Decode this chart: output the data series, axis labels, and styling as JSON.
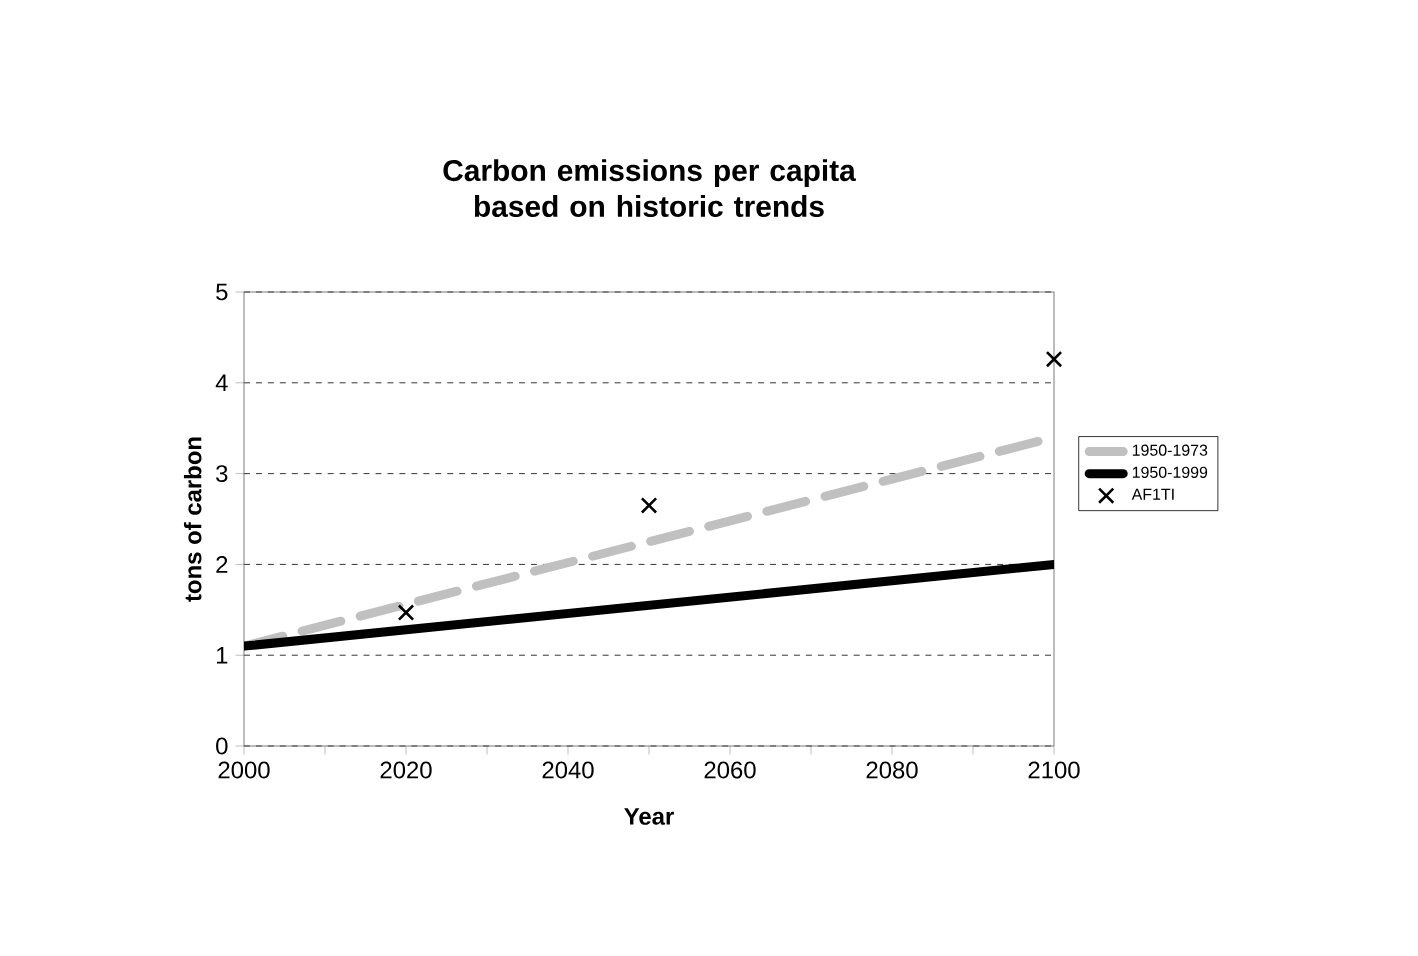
{
  "chart_data": {
    "type": "line",
    "title": "Carbon emissions per capita based on historic trends",
    "xlabel": "Year",
    "ylabel": "tons of carbon",
    "xlim": [
      2000,
      2100
    ],
    "xticks": [
      2000,
      {
        "value": 2010,
        "label": null
      },
      2020,
      {
        "value": 2030,
        "label": null
      },
      2040,
      {
        "value": 2050,
        "label": null
      },
      2060,
      {
        "value": 2070,
        "label": null
      },
      2080,
      {
        "value": 2090,
        "label": null
      },
      2100
    ],
    "ylim": [
      0,
      5
    ],
    "yticks": [
      0,
      1,
      2,
      3,
      4,
      5
    ],
    "grid": "y",
    "legend": "right",
    "series": [
      {
        "name": "1950-1973",
        "color": "#c0c0c0",
        "line_style": "dashed",
        "x": [
          2000,
          2100
        ],
        "values": [
          1.1,
          3.4
        ]
      },
      {
        "name": "1950-1999",
        "color": "#000000",
        "line_style": "solid",
        "x": [
          2000,
          2100
        ],
        "values": [
          1.1,
          2.0
        ]
      },
      {
        "name": "AF1TI",
        "type": "scatter",
        "color": "#000000",
        "marker": "cross",
        "x": [
          2020,
          2050,
          2100
        ],
        "values": [
          1.47,
          2.65,
          4.26
        ]
      }
    ]
  }
}
